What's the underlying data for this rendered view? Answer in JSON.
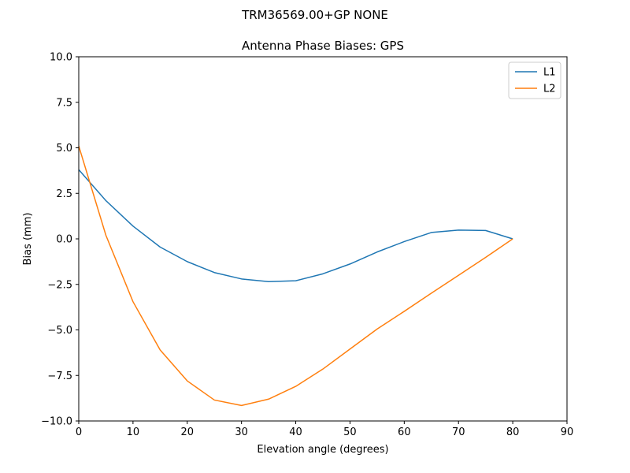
{
  "chart_data": {
    "type": "line",
    "suptitle": "TRM36569.00+GP  NONE",
    "title": "Antenna Phase Biases: GPS",
    "xlabel": "Elevation angle (degrees)",
    "ylabel": "Bias (mm)",
    "xlim": [
      0,
      90
    ],
    "ylim": [
      -10,
      10
    ],
    "xticks": [
      "0",
      "10",
      "20",
      "30",
      "40",
      "50",
      "60",
      "70",
      "80",
      "90"
    ],
    "yticks": [
      "−10.0",
      "−7.5",
      "−5.0",
      "−2.5",
      "0.0",
      "2.5",
      "5.0",
      "7.5",
      "10.0"
    ],
    "grid": false,
    "legend_position": "top-right",
    "x": [
      0,
      5,
      10,
      15,
      20,
      25,
      30,
      35,
      40,
      45,
      50,
      55,
      60,
      65,
      70,
      75,
      80
    ],
    "series": [
      {
        "name": "L1",
        "color": "#1f77b4",
        "values": [
          3.8,
          2.1,
          0.7,
          -0.45,
          -1.25,
          -1.85,
          -2.2,
          -2.35,
          -2.3,
          -1.92,
          -1.38,
          -0.72,
          -0.15,
          0.35,
          0.48,
          0.46,
          0.0
        ]
      },
      {
        "name": "L2",
        "color": "#ff7f0e",
        "values": [
          5.1,
          0.2,
          -3.45,
          -6.1,
          -7.8,
          -8.85,
          -9.15,
          -8.8,
          -8.1,
          -7.15,
          -6.05,
          -4.95,
          -3.98,
          -2.98,
          -2.0,
          -1.02,
          0.0
        ]
      }
    ]
  }
}
